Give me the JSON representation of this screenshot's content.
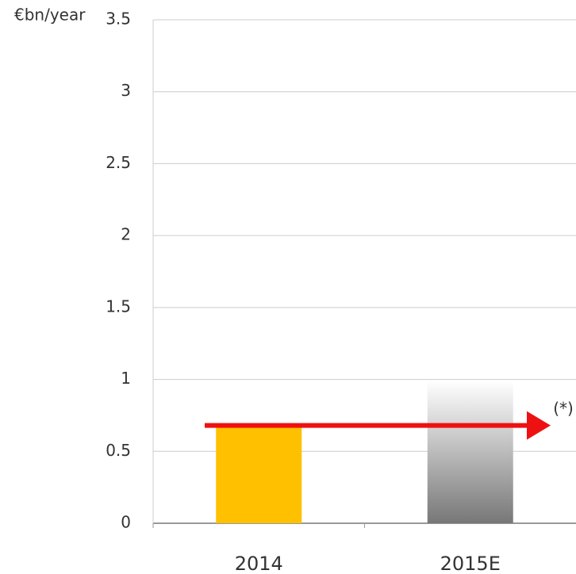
{
  "chart_data": {
    "type": "bar",
    "y_axis_label": "€bn/year",
    "categories": [
      "2014",
      "2015E"
    ],
    "values": [
      0.68,
      0.99
    ],
    "colors": [
      "#ffc000",
      "#7a7a7a"
    ],
    "faded": [
      false,
      true
    ],
    "ylim": [
      0,
      3.5
    ],
    "yticks": [
      0,
      0.5,
      1,
      1.5,
      2,
      2.5,
      3,
      3.5
    ],
    "grid": true,
    "reference_line": {
      "value": 0.68,
      "label": "(*)",
      "color": "#ee1111"
    }
  }
}
